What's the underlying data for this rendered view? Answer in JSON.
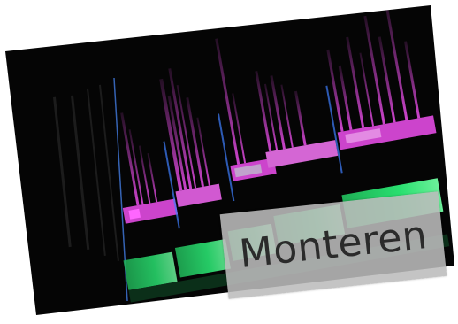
{
  "caption": {
    "text": "Monteren"
  },
  "colors": {
    "background": "#ffffff",
    "photo_base": "#050505",
    "video_track": "#cc44cc",
    "video_track_light": "#e38ae3",
    "audio_track": "#22d86a",
    "audio_track_light": "#7af0a0",
    "caption_box": "#bcbcbc",
    "caption_text": "#2b2b2b"
  },
  "icons": {
    "timeline": "video-editing-timeline-photo"
  }
}
